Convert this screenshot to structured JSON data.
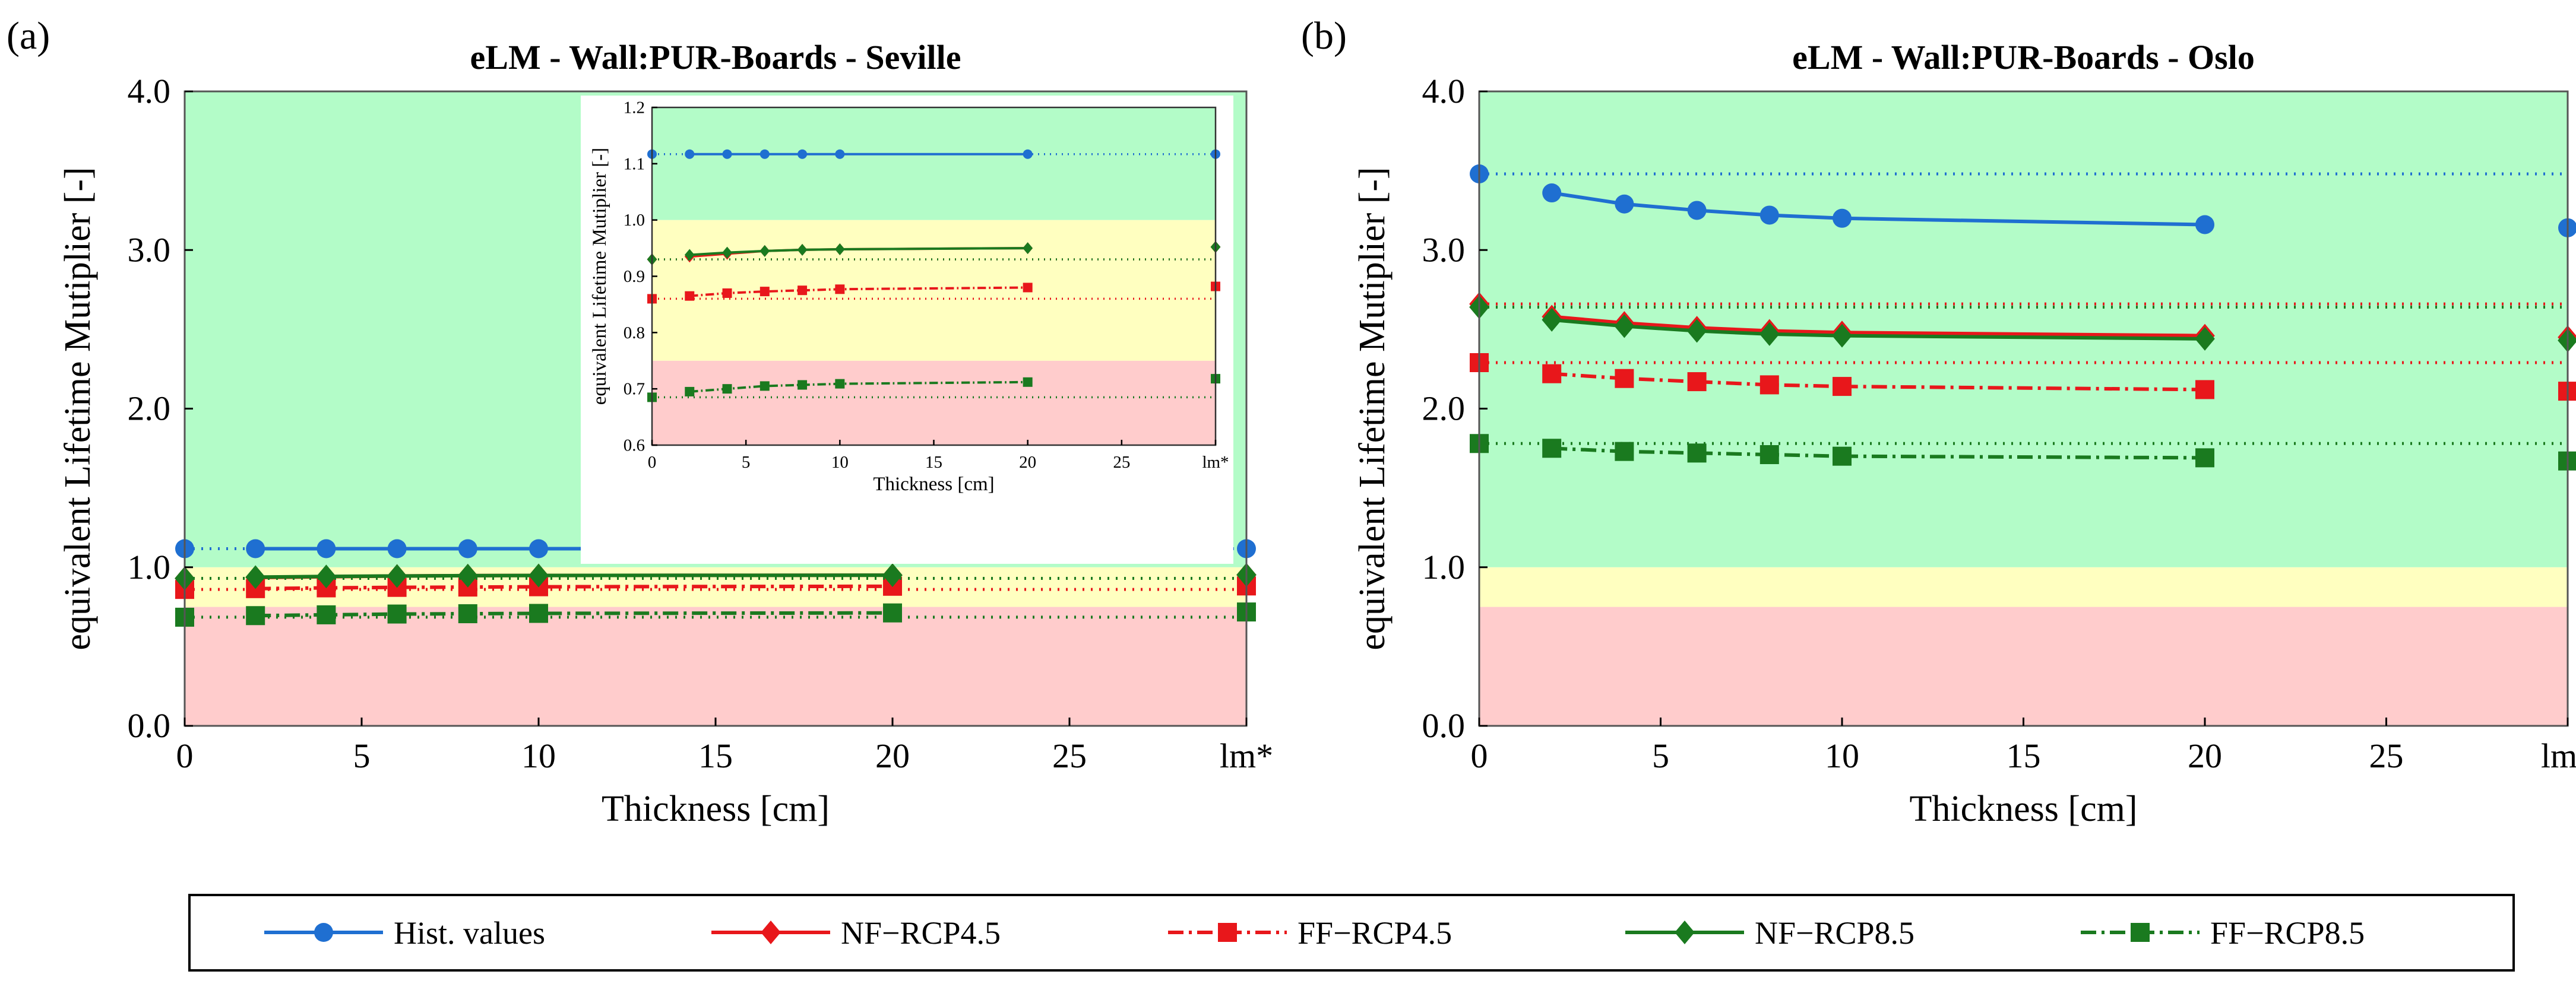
{
  "styles": {
    "Hist": {
      "color": "#1f6fd1",
      "dash": "solid",
      "marker": "circle"
    },
    "NF45": {
      "color": "#e8171b",
      "dash": "solid",
      "marker": "diamond"
    },
    "FF45": {
      "color": "#e8171b",
      "dash": "dashdot",
      "marker": "square"
    },
    "NF85": {
      "color": "#1a7a1f",
      "dash": "solid",
      "marker": "diamond"
    },
    "FF85": {
      "color": "#1a7a1f",
      "dash": "dashdot",
      "marker": "square"
    }
  },
  "legend": [
    {
      "key": "Hist",
      "label": "Hist. values"
    },
    {
      "key": "NF45",
      "label": "NF−RCP4.5"
    },
    {
      "key": "FF45",
      "label": "FF−RCP4.5"
    },
    {
      "key": "NF85",
      "label": "NF−RCP8.5"
    },
    {
      "key": "FF85",
      "label": "FF−RCP8.5"
    }
  ],
  "chart_data": [
    {
      "id": "a",
      "type": "line",
      "panel_label": "(a)",
      "title": "eLM - Wall:PUR-Boards - Seville",
      "xlabel": "Thickness [cm]",
      "ylabel": "equivalent Lifetime Mutiplier [-]",
      "xlim": [
        0,
        30
      ],
      "ylim": [
        0,
        4
      ],
      "xticks": [
        0,
        5,
        10,
        15,
        20,
        25,
        30
      ],
      "xtick_labels": [
        "0",
        "5",
        "10",
        "15",
        "20",
        "25",
        "lm*"
      ],
      "yticks": [
        0,
        1,
        2,
        3,
        4
      ],
      "ytick_labels": [
        "0.0",
        "1.0",
        "2.0",
        "3.0",
        "4.0"
      ],
      "bands": [
        {
          "from": 0,
          "to": 0.75,
          "color": "#ffcccc"
        },
        {
          "from": 0.75,
          "to": 1.0,
          "color": "#ffffc0"
        },
        {
          "from": 1.0,
          "to": 4.0,
          "color": "#b3fcc8"
        }
      ],
      "x": [
        2,
        4,
        6,
        8,
        10,
        20
      ],
      "series": [
        {
          "key": "Hist",
          "name": "Hist. values",
          "x0": 1.117,
          "values": [
            1.117,
            1.117,
            1.117,
            1.117,
            1.117,
            1.117
          ],
          "lm": 1.117
        },
        {
          "key": "NF45",
          "name": "NF−RCP4.5",
          "x0": 0.93,
          "values": [
            0.935,
            0.94,
            0.945,
            0.947,
            0.948,
            0.95
          ],
          "lm": 0.952
        },
        {
          "key": "FF45",
          "name": "FF−RCP4.5",
          "x0": 0.86,
          "values": [
            0.865,
            0.87,
            0.873,
            0.875,
            0.877,
            0.88
          ],
          "lm": 0.882
        },
        {
          "key": "NF85",
          "name": "NF−RCP8.5",
          "x0": 0.93,
          "values": [
            0.938,
            0.942,
            0.945,
            0.947,
            0.948,
            0.95
          ],
          "lm": 0.952
        },
        {
          "key": "FF85",
          "name": "FF−RCP8.5",
          "x0": 0.685,
          "values": [
            0.695,
            0.7,
            0.705,
            0.707,
            0.709,
            0.712
          ],
          "lm": 0.718
        }
      ],
      "inset": {
        "xlabel": "Thickness [cm]",
        "ylabel": "equivalent Lifetime Mutiplier [-]",
        "xlim": [
          0,
          30
        ],
        "ylim": [
          0.6,
          1.2
        ],
        "xticks": [
          0,
          5,
          10,
          15,
          20,
          25,
          30
        ],
        "xtick_labels": [
          "0",
          "5",
          "10",
          "15",
          "20",
          "25",
          "lm*"
        ],
        "yticks": [
          0.6,
          0.7,
          0.8,
          0.9,
          1.0,
          1.1,
          1.2
        ],
        "ytick_labels": [
          "0.6",
          "0.7",
          "0.8",
          "0.9",
          "1.0",
          "1.1",
          "1.2"
        ]
      }
    },
    {
      "id": "b",
      "type": "line",
      "panel_label": "(b)",
      "title": "eLM - Wall:PUR-Boards - Oslo",
      "xlabel": "Thickness [cm]",
      "ylabel": "equivalent Lifetime Mutiplier [-]",
      "xlim": [
        0,
        30
      ],
      "ylim": [
        0,
        4
      ],
      "xticks": [
        0,
        5,
        10,
        15,
        20,
        25,
        30
      ],
      "xtick_labels": [
        "0",
        "5",
        "10",
        "15",
        "20",
        "25",
        "lm*"
      ],
      "yticks": [
        0,
        1,
        2,
        3,
        4
      ],
      "ytick_labels": [
        "0.0",
        "1.0",
        "2.0",
        "3.0",
        "4.0"
      ],
      "bands": [
        {
          "from": 0,
          "to": 0.75,
          "color": "#ffcccc"
        },
        {
          "from": 0.75,
          "to": 1.0,
          "color": "#ffffc0"
        },
        {
          "from": 1.0,
          "to": 4.0,
          "color": "#b3fcc8"
        }
      ],
      "x": [
        2,
        4,
        6,
        8,
        10,
        20
      ],
      "series": [
        {
          "key": "Hist",
          "name": "Hist. values",
          "x0": 3.48,
          "values": [
            3.36,
            3.29,
            3.25,
            3.22,
            3.2,
            3.16
          ],
          "lm": 3.14
        },
        {
          "key": "NF45",
          "name": "NF−RCP4.5",
          "x0": 2.66,
          "values": [
            2.58,
            2.54,
            2.51,
            2.49,
            2.48,
            2.46
          ],
          "lm": 2.45
        },
        {
          "key": "FF45",
          "name": "FF−RCP4.5",
          "x0": 2.29,
          "values": [
            2.22,
            2.19,
            2.17,
            2.15,
            2.14,
            2.12
          ],
          "lm": 2.11
        },
        {
          "key": "NF85",
          "name": "NF−RCP8.5",
          "x0": 2.64,
          "values": [
            2.56,
            2.52,
            2.49,
            2.47,
            2.46,
            2.44
          ],
          "lm": 2.43
        },
        {
          "key": "FF85",
          "name": "FF−RCP8.5",
          "x0": 1.78,
          "values": [
            1.75,
            1.73,
            1.72,
            1.71,
            1.7,
            1.69
          ],
          "lm": 1.67
        }
      ]
    }
  ]
}
